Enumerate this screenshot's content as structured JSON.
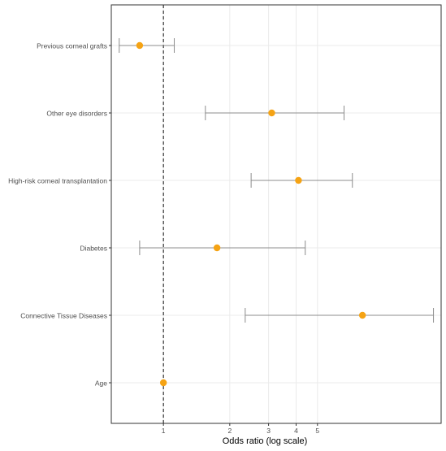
{
  "chart_data": {
    "type": "forest",
    "xlabel": "Odds ratio (log scale)",
    "ylabel": "",
    "x_scale": "log",
    "xlim": [
      0.58,
      18.2
    ],
    "x_ticks": [
      1,
      2,
      3,
      4,
      5
    ],
    "x_tick_labels": [
      "1",
      "2",
      "3",
      "4",
      "5"
    ],
    "reference_line": 1,
    "grid": true,
    "legend": "none",
    "colors": {
      "point": "#F5A314",
      "ci": "#8c8c8c",
      "reference": "#333333",
      "grid": "#ebebeb",
      "panel_border": "#333333"
    },
    "rows": [
      {
        "label": "Previous corneal grafts",
        "or": 0.78,
        "ci_low": 0.63,
        "ci_high": 1.12
      },
      {
        "label": "Other eye disorders",
        "or": 3.1,
        "ci_low": 1.55,
        "ci_high": 6.6
      },
      {
        "label": "High-risk corneal transplantation",
        "or": 4.1,
        "ci_low": 2.5,
        "ci_high": 7.2
      },
      {
        "label": "Diabetes",
        "or": 1.75,
        "ci_low": 0.78,
        "ci_high": 4.4
      },
      {
        "label": "Connective Tissue Diseases",
        "or": 8.0,
        "ci_low": 2.35,
        "ci_high": 16.8
      },
      {
        "label": "Age",
        "or": 1.0,
        "ci_low": 1.0,
        "ci_high": 1.0
      }
    ]
  }
}
